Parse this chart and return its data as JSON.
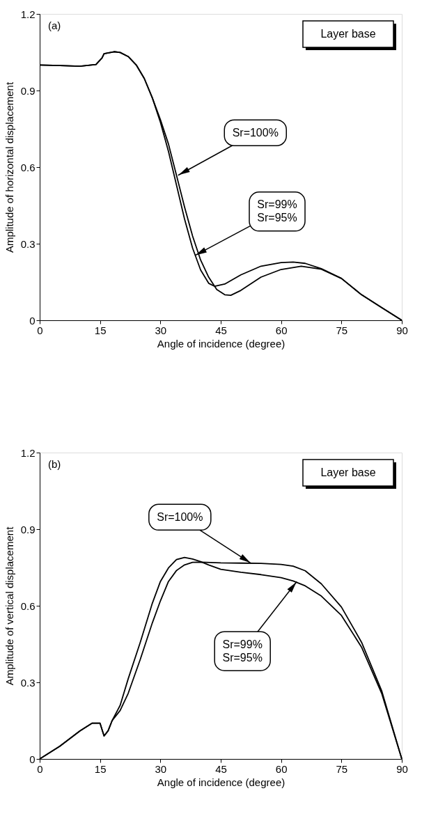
{
  "chart_data": [
    {
      "type": "line",
      "xlabel": "Angle of incidence (degree)",
      "ylabel": "Amplitude of horizontal displacement",
      "xlim": [
        0,
        90
      ],
      "xticks": [
        0,
        15,
        30,
        45,
        60,
        75,
        90
      ],
      "ylim": [
        0,
        1.2
      ],
      "yticks": [
        0,
        0.3,
        0.6,
        0.9,
        1.2
      ],
      "grid": false,
      "legend": false,
      "series": [
        {
          "color": "#000000",
          "x": [
            0,
            5,
            10,
            14,
            15.5,
            16,
            18.5,
            20,
            22,
            24,
            26,
            28,
            30,
            32,
            34,
            36,
            38,
            40,
            42,
            44,
            46,
            47.5,
            50,
            55,
            60,
            65,
            70,
            75,
            80,
            85,
            90
          ],
          "values": [
            1.0,
            0.998,
            0.995,
            1.002,
            1.028,
            1.044,
            1.052,
            1.049,
            1.033,
            1.0,
            0.947,
            0.871,
            0.786,
            0.691,
            0.568,
            0.444,
            0.33,
            0.236,
            0.169,
            0.121,
            0.1,
            0.098,
            0.117,
            0.169,
            0.199,
            0.212,
            0.2,
            0.164,
            0.1,
            0.05,
            0
          ]
        },
        {
          "color": "#000000",
          "x": [
            0,
            5,
            10,
            14,
            15.5,
            16,
            18.5,
            20,
            22,
            24,
            26,
            28,
            30,
            32,
            34,
            36,
            38,
            40,
            42,
            43.5,
            46,
            50,
            55,
            60,
            63,
            66,
            70,
            75,
            80,
            85,
            90
          ],
          "values": [
            1.0,
            0.998,
            0.995,
            1.002,
            1.028,
            1.044,
            1.052,
            1.049,
            1.033,
            1.0,
            0.947,
            0.871,
            0.776,
            0.662,
            0.53,
            0.397,
            0.283,
            0.197,
            0.145,
            0.133,
            0.142,
            0.178,
            0.212,
            0.226,
            0.228,
            0.223,
            0.202,
            0.164,
            0.1,
            0.05,
            0
          ]
        }
      ],
      "annotations": [
        "(a)",
        "Layer base",
        {
          "text": "Sr=100%",
          "x": 34.4,
          "y": 0.568
        },
        {
          "text": "Sr=99%\nSr=95%",
          "x": 38.6,
          "y": 0.254
        }
      ]
    },
    {
      "type": "line",
      "xlabel": "Angle of incidence (degree)",
      "ylabel": "Amplitude of vertical displacement",
      "xlim": [
        0,
        90
      ],
      "xticks": [
        0,
        15,
        30,
        45,
        60,
        75,
        90
      ],
      "ylim": [
        0,
        1.2
      ],
      "yticks": [
        0,
        0.3,
        0.6,
        0.9,
        1.2
      ],
      "grid": false,
      "legend": false,
      "series": [
        {
          "color": "#000000",
          "x": [
            0,
            5,
            10,
            13,
            15,
            16,
            17,
            18,
            20,
            22,
            25,
            28,
            30,
            32,
            34,
            36,
            38,
            40,
            45,
            50,
            55,
            60,
            63,
            66,
            70,
            75,
            80,
            85,
            90
          ],
          "values": [
            0,
            0.05,
            0.11,
            0.14,
            0.14,
            0.09,
            0.11,
            0.15,
            0.19,
            0.257,
            0.39,
            0.533,
            0.619,
            0.695,
            0.738,
            0.76,
            0.77,
            0.771,
            0.768,
            0.767,
            0.766,
            0.762,
            0.755,
            0.737,
            0.686,
            0.595,
            0.457,
            0.267,
            0
          ]
        },
        {
          "color": "#000000",
          "x": [
            0,
            5,
            10,
            13,
            15,
            16,
            17,
            18,
            20,
            22,
            25,
            28,
            30,
            32,
            34,
            36,
            38,
            40,
            42,
            45,
            50,
            55,
            60,
            63,
            66,
            70,
            75,
            80,
            85,
            90
          ],
          "values": [
            0,
            0.05,
            0.11,
            0.14,
            0.14,
            0.09,
            0.11,
            0.15,
            0.21,
            0.314,
            0.457,
            0.61,
            0.695,
            0.748,
            0.781,
            0.789,
            0.783,
            0.773,
            0.76,
            0.743,
            0.731,
            0.722,
            0.71,
            0.697,
            0.678,
            0.638,
            0.562,
            0.438,
            0.257,
            0
          ]
        }
      ],
      "annotations": [
        "(b)",
        "Layer base",
        {
          "text": "Sr=100%",
          "x": 52.5,
          "y": 0.767
        },
        {
          "text": "Sr=99%\nSr=95%",
          "x": 63.9,
          "y": 0.695
        }
      ]
    }
  ]
}
